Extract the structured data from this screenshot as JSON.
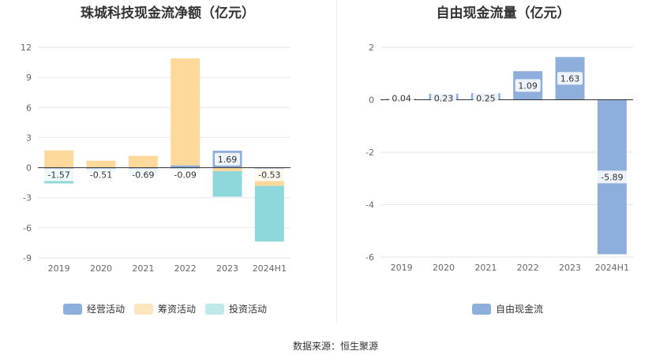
{
  "source_text": "数据来源：恒生聚源",
  "chart_data": [
    {
      "type": "bar",
      "stacked": true,
      "title": "珠城科技现金流净额（亿元）",
      "categories": [
        "2019",
        "2020",
        "2021",
        "2022",
        "2023",
        "2024H1"
      ],
      "ylim": [
        -9,
        12
      ],
      "yticks": [
        12,
        9,
        6,
        3,
        0,
        -3,
        -6,
        -9
      ],
      "series": [
        {
          "name": "经营活动",
          "color": "#8eaedc",
          "values": [
            -0.2,
            -0.17,
            -0.17,
            0.23,
            1.69,
            -0.12
          ]
        },
        {
          "name": "筹资活动",
          "color": "#ffd99c",
          "values": [
            1.72,
            0.7,
            1.18,
            10.67,
            -0.35,
            -1.7
          ]
        },
        {
          "name": "投资活动",
          "color": "#8ed8db",
          "values": [
            -1.37,
            -0.34,
            -0.52,
            -0.09,
            -2.55,
            -5.55
          ]
        }
      ],
      "data_labels": [
        "-1.57",
        "-0.51",
        "-0.69",
        "-0.09",
        "1.69",
        "-0.53"
      ],
      "grid": true,
      "legend_position": "bottom"
    },
    {
      "type": "bar",
      "title": "自由现金流量（亿元）",
      "categories": [
        "2019",
        "2020",
        "2021",
        "2022",
        "2023",
        "2024H1"
      ],
      "ylim": [
        -6,
        2
      ],
      "yticks": [
        2,
        0,
        -2,
        -4,
        -6
      ],
      "series": [
        {
          "name": "自由现金流",
          "color": "#8eaedc",
          "values": [
            0.04,
            0.23,
            0.25,
            1.09,
            1.63,
            -5.89
          ]
        }
      ],
      "data_labels": [
        "0.04",
        "0.23",
        "0.25",
        "1.09",
        "1.63",
        "-5.89"
      ],
      "grid": true,
      "legend_position": "bottom"
    }
  ]
}
